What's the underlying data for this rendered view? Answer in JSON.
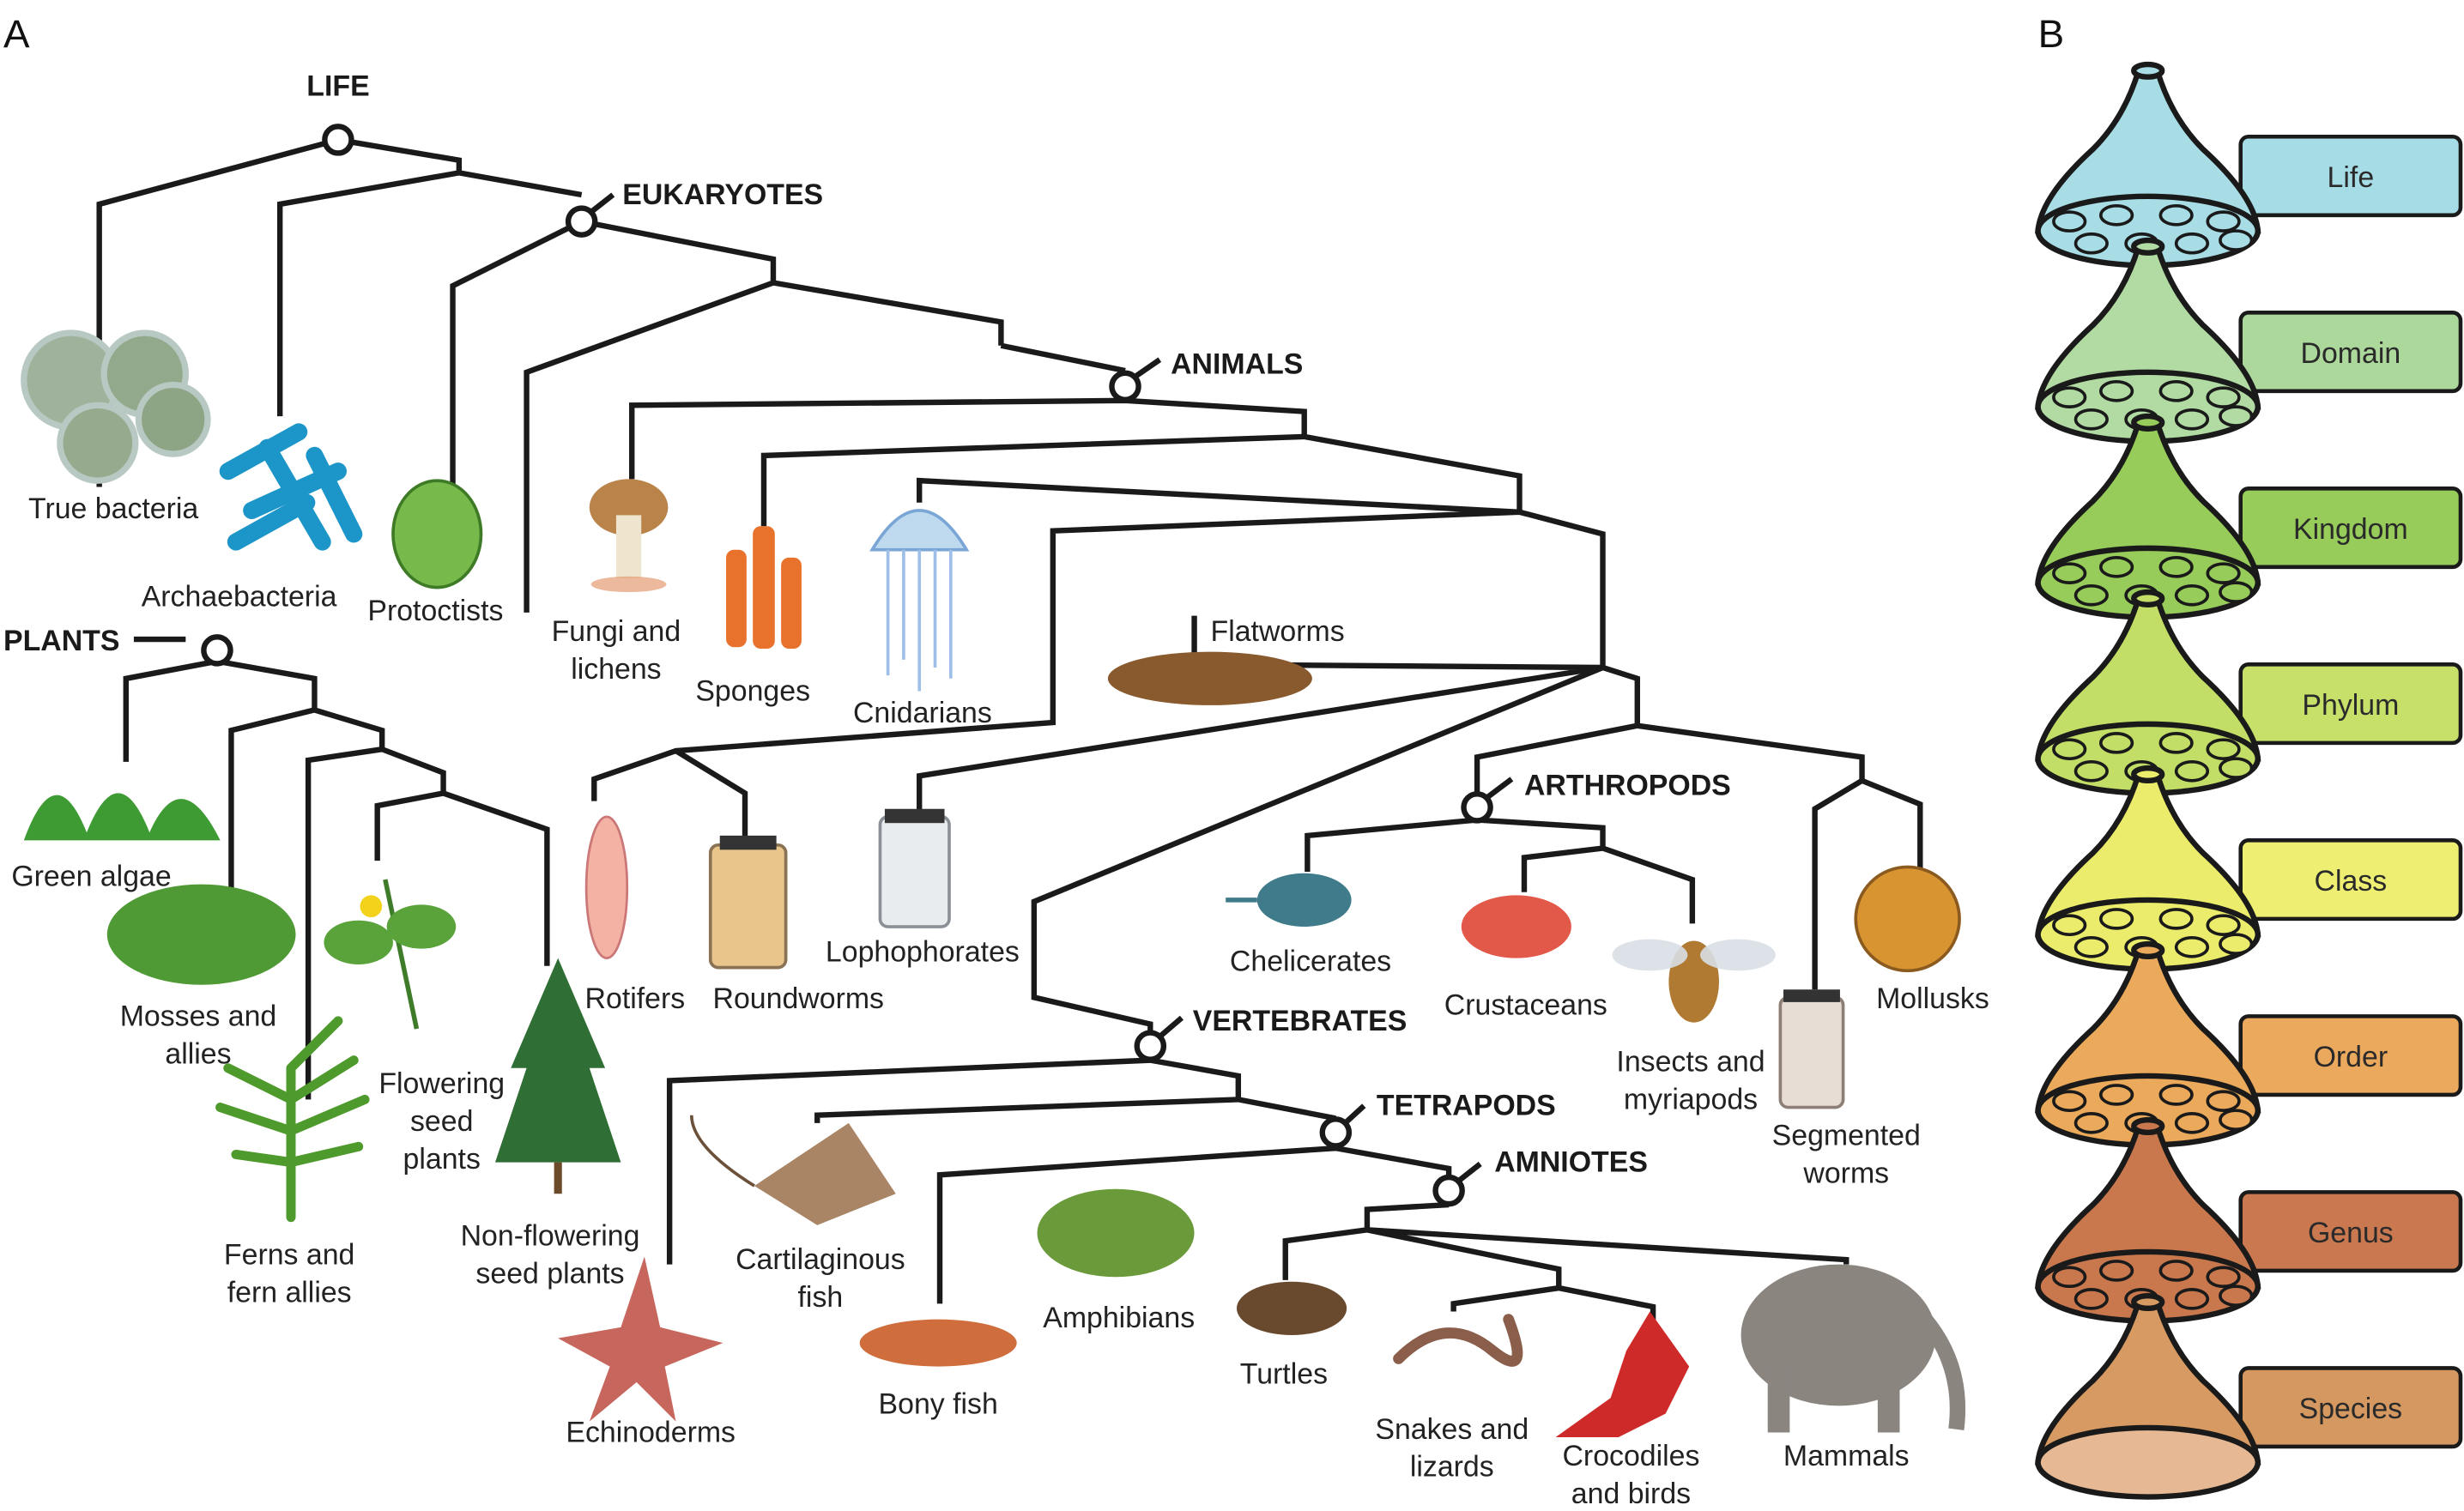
{
  "panels": {
    "a": "A",
    "b": "B"
  },
  "nodes": {
    "life": "LIFE",
    "eukaryotes": "EUKARYOTES",
    "animals": "ANIMALS",
    "plants": "PLANTS",
    "arthropods": "ARTHROPODS",
    "vertebrates": "VERTEBRATES",
    "tetrapods": "TETRAPODS",
    "amniotes": "AMNIOTES"
  },
  "taxa": {
    "true_bacteria": [
      "True bacteria"
    ],
    "archaebacteria": [
      "Archaebacteria"
    ],
    "protoctists": [
      "Protoctists"
    ],
    "fungi": [
      "Fungi and",
      "lichens"
    ],
    "sponges": [
      "Sponges"
    ],
    "cnidarians": [
      "Cnidarians"
    ],
    "flatworms": [
      "Flatworms"
    ],
    "green_algae": [
      "Green algae"
    ],
    "mosses": [
      "Mosses and",
      "allies"
    ],
    "flowering": [
      "Flowering",
      "seed",
      "plants"
    ],
    "ferns": [
      "Ferns and",
      "fern allies"
    ],
    "nonflowering": [
      "Non-flowering",
      "seed plants"
    ],
    "rotifers": [
      "Rotifers"
    ],
    "roundworms": [
      "Roundworms"
    ],
    "lophophorates": [
      "Lophophorates"
    ],
    "chelicerates": [
      "Chelicerates"
    ],
    "crustaceans": [
      "Crustaceans"
    ],
    "insects": [
      "Insects and",
      "myriapods"
    ],
    "segmented": [
      "Segmented",
      "worms"
    ],
    "mollusks": [
      "Mollusks"
    ],
    "echinoderms": [
      "Echinoderms"
    ],
    "cartilaginous": [
      "Cartilaginous",
      "fish"
    ],
    "bony_fish": [
      "Bony fish"
    ],
    "amphibians": [
      "Amphibians"
    ],
    "turtles": [
      "Turtles"
    ],
    "snakes": [
      "Snakes and",
      "lizards"
    ],
    "crocodiles": [
      "Crocodiles",
      "and birds"
    ],
    "mammals": [
      "Mammals"
    ]
  },
  "ranks": [
    {
      "label": "Life",
      "color": "#a8dde6",
      "box": "#a6dce6"
    },
    {
      "label": "Domain",
      "color": "#b2dba3",
      "box": "#acd89c"
    },
    {
      "label": "Kingdom",
      "color": "#97cb5a",
      "box": "#97cb5a"
    },
    {
      "label": "Phylum",
      "color": "#c2de67",
      "box": "#c7e06a"
    },
    {
      "label": "Class",
      "color": "#ecec6c",
      "box": "#eeee72"
    },
    {
      "label": "Order",
      "color": "#eaa95b",
      "box": "#eba95d"
    },
    {
      "label": "Genus",
      "color": "#c9784e",
      "box": "#c97850"
    },
    {
      "label": "Species",
      "color": "#d69a62",
      "box": "#d49860"
    }
  ]
}
